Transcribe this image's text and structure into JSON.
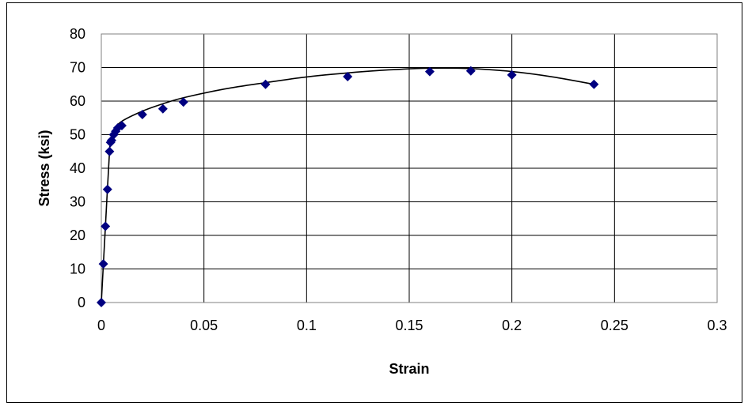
{
  "chart_data": {
    "type": "scatter",
    "title": "",
    "xlabel": "Strain",
    "ylabel": "Stress (ksi)",
    "xlim": [
      0,
      0.3
    ],
    "ylim": [
      0,
      80
    ],
    "xticks": [
      "0",
      "0.05",
      "0.1",
      "0.15",
      "0.2",
      "0.25",
      "0.3"
    ],
    "yticks": [
      "0",
      "10",
      "20",
      "30",
      "40",
      "50",
      "60",
      "70",
      "80"
    ],
    "grid": true,
    "legend": "none",
    "marker_color": "#000080",
    "line_color": "#000000",
    "series": [
      {
        "marker": "diamond",
        "points": [
          [
            0,
            0
          ],
          [
            0.001,
            11.5
          ],
          [
            0.002,
            22.7
          ],
          [
            0.003,
            33.7
          ],
          [
            0.004,
            45.0
          ],
          [
            0.0045,
            47.7
          ],
          [
            0.005,
            48.3
          ],
          [
            0.006,
            50.0
          ],
          [
            0.007,
            51.0
          ],
          [
            0.008,
            52.0
          ],
          [
            0.01,
            52.7
          ],
          [
            0.02,
            56.0
          ],
          [
            0.03,
            57.7
          ],
          [
            0.04,
            59.7
          ],
          [
            0.08,
            65.0
          ],
          [
            0.12,
            67.3
          ],
          [
            0.16,
            68.8
          ],
          [
            0.18,
            69.0
          ],
          [
            0.2,
            67.8
          ],
          [
            0.24,
            65.0
          ]
        ]
      }
    ],
    "trendline": {
      "points": [
        [
          0,
          0
        ],
        [
          0.002,
          22.7
        ],
        [
          0.004,
          45.0
        ],
        [
          0.005,
          49.5
        ],
        [
          0.007,
          52.0
        ],
        [
          0.01,
          54.0
        ],
        [
          0.02,
          57.0
        ],
        [
          0.03,
          59.2
        ],
        [
          0.04,
          61.0
        ],
        [
          0.06,
          63.6
        ],
        [
          0.08,
          65.5
        ],
        [
          0.1,
          67.2
        ],
        [
          0.12,
          68.4
        ],
        [
          0.14,
          69.3
        ],
        [
          0.16,
          69.8
        ],
        [
          0.18,
          69.7
        ],
        [
          0.2,
          68.8
        ],
        [
          0.22,
          67.2
        ],
        [
          0.24,
          65.0
        ]
      ]
    }
  }
}
